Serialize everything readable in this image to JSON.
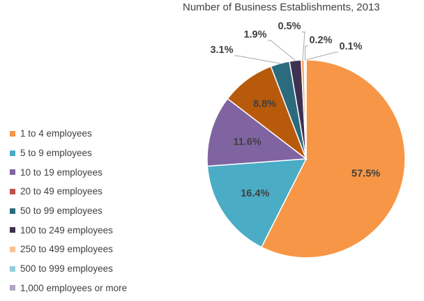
{
  "chart_data": {
    "type": "pie",
    "title": "Number of Business Establishments, 2013",
    "categories": [
      "1 to 4 employees",
      "5 to 9 employees",
      "10 to 19 employees",
      "20 to 49 employees",
      "50 to 99 employees",
      "100 to 249 employees",
      "250 to 499 employees",
      "500 to 999 employees",
      "1,000 employees or more"
    ],
    "values": [
      57.5,
      16.4,
      11.6,
      8.8,
      3.1,
      1.9,
      0.5,
      0.2,
      0.1
    ],
    "labels": [
      "57.5%",
      "16.4%",
      "11.6%",
      "8.8%",
      "3.1%",
      "1.9%",
      "0.5%",
      "0.2%",
      "0.1%"
    ],
    "colors": [
      "#F79646",
      "#4BACC6",
      "#8064A2",
      "#C0504D",
      "#2C6B7E",
      "#3F3151",
      "#FAC090",
      "#93CDDD",
      "#B3A2C7"
    ],
    "slice_colors": [
      "#F79646",
      "#4BACC6",
      "#8064A2",
      "#B85A0B",
      "#2C6B7E",
      "#3F3151",
      "#F9A865",
      "#6FC2D6",
      "#9C86C2"
    ],
    "legend_position": "left"
  }
}
